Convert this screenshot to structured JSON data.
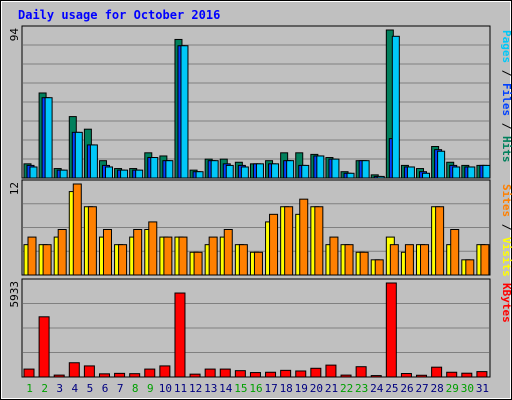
{
  "chart_data": {
    "type": "bar",
    "title": "Daily usage for October 2016",
    "x": [
      "1",
      "2",
      "3",
      "4",
      "5",
      "6",
      "7",
      "8",
      "9",
      "10",
      "11",
      "12",
      "13",
      "14",
      "15",
      "16",
      "17",
      "18",
      "19",
      "20",
      "21",
      "22",
      "23",
      "24",
      "25",
      "26",
      "27",
      "28",
      "29",
      "30",
      "31"
    ],
    "weekend_days": [
      "1",
      "2",
      "8",
      "9",
      "15",
      "16",
      "22",
      "23",
      "29",
      "30"
    ],
    "panels": [
      {
        "id": "top",
        "max_label": "94",
        "ylim": [
          0,
          94
        ],
        "right_label": [
          {
            "text": "Pages",
            "color": "#00c8f8"
          },
          {
            "text": " / ",
            "color": "#000000"
          },
          {
            "text": "Files",
            "color": "#0040ff"
          },
          {
            "text": " / ",
            "color": "#000000"
          },
          {
            "text": "Hits",
            "color": "#00805c"
          }
        ],
        "series": [
          {
            "name": "Hits",
            "color": "#00805c",
            "values": [
              9,
              54,
              6,
              39,
              31,
              11,
              6,
              6,
              16,
              14,
              88,
              5,
              12,
              12,
              10,
              9,
              11,
              16,
              16,
              15,
              13,
              4,
              11,
              2,
              94,
              8,
              6,
              20,
              10,
              8,
              8
            ]
          },
          {
            "name": "Files",
            "color": "#0040ff",
            "values": [
              8,
              51,
              5,
              29,
              21,
              8,
              5,
              5,
              13,
              11,
              84,
              4,
              11,
              9,
              8,
              9,
              9,
              11,
              8,
              14,
              12,
              3,
              11,
              1,
              25,
              7,
              4,
              18,
              8,
              7,
              8
            ]
          },
          {
            "name": "Pages",
            "color": "#00c8f8",
            "values": [
              7,
              51,
              5,
              29,
              21,
              7,
              5,
              5,
              13,
              11,
              84,
              4,
              11,
              8,
              7,
              9,
              9,
              11,
              8,
              14,
              12,
              3,
              11,
              1,
              90,
              7,
              3,
              17,
              7,
              7,
              8
            ]
          }
        ]
      },
      {
        "id": "mid",
        "max_label": "12",
        "ylim": [
          0,
          12
        ],
        "right_label": [
          {
            "text": "Sites",
            "color": "#ff8000"
          },
          {
            "text": " / ",
            "color": "#000000"
          },
          {
            "text": "Visits",
            "color": "#ffff00"
          }
        ],
        "series": [
          {
            "name": "Visits",
            "color": "#ffff00",
            "values": [
              4,
              4,
              5,
              11,
              9,
              5,
              4,
              5,
              6,
              5,
              5,
              3,
              4,
              5,
              4,
              3,
              7,
              9,
              8,
              9,
              4,
              4,
              3,
              2,
              5,
              3,
              4,
              9,
              4,
              2,
              4
            ]
          },
          {
            "name": "Sites",
            "color": "#ff8000",
            "values": [
              5,
              4,
              6,
              12,
              9,
              6,
              4,
              6,
              7,
              5,
              5,
              3,
              5,
              6,
              4,
              3,
              8,
              9,
              10,
              9,
              5,
              4,
              3,
              2,
              4,
              4,
              4,
              9,
              6,
              2,
              4
            ]
          }
        ]
      },
      {
        "id": "bot",
        "max_label": "5933",
        "ylim": [
          0,
          5933
        ],
        "right_label": [
          {
            "text": "KBytes",
            "color": "#ff0000"
          }
        ],
        "series": [
          {
            "name": "KBytes",
            "color": "#ff0000",
            "values": [
              500,
              3800,
              120,
              900,
              700,
              200,
              230,
              210,
              500,
              700,
              5300,
              180,
              500,
              500,
              400,
              280,
              300,
              420,
              380,
              550,
              750,
              120,
              650,
              90,
              5933,
              220,
              110,
              620,
              300,
              240,
              340
            ]
          }
        ]
      }
    ],
    "colors": {
      "background": "#c0c0c0",
      "plot_bg": "#c0c0c0",
      "grid": "#808080",
      "title": "#0000ff",
      "weekday_label": "#000080",
      "weekend_label": "#00a000"
    }
  }
}
